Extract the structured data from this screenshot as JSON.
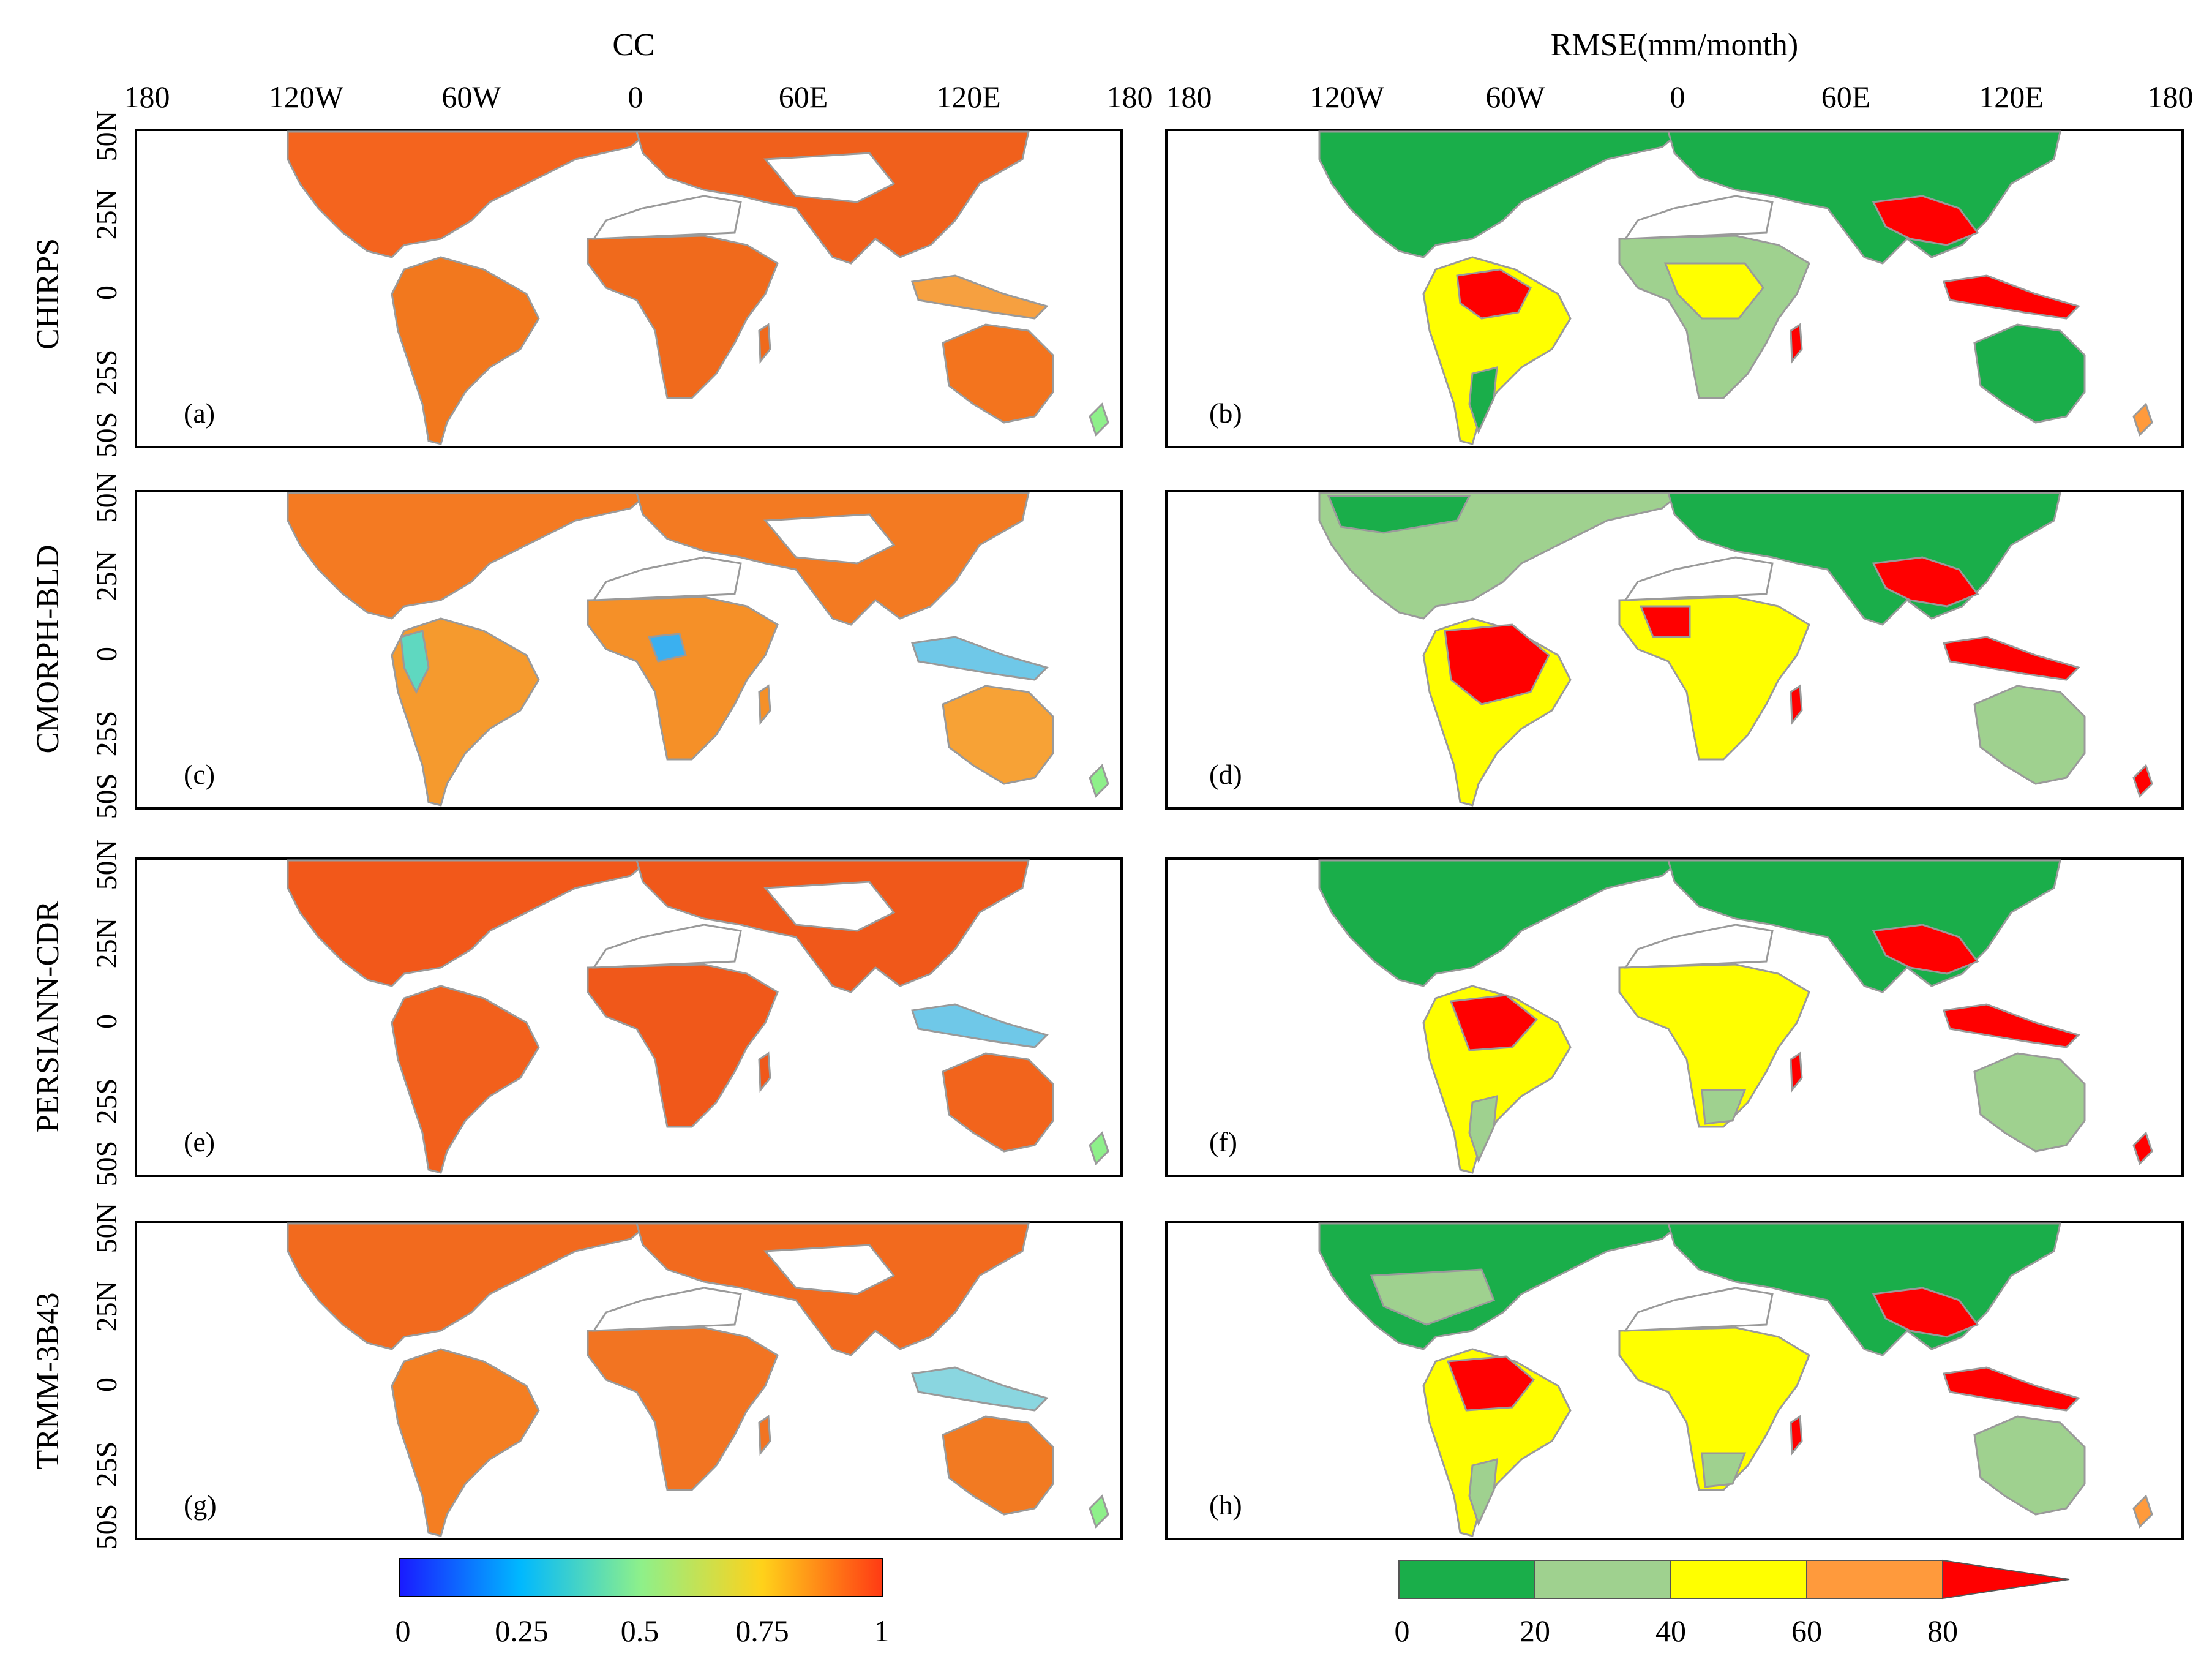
{
  "columns": [
    {
      "title": "CC",
      "lon_labels": [
        "180",
        "120W",
        "60W",
        "0",
        "60E",
        "120E",
        "180"
      ]
    },
    {
      "title": "RMSE(mm/month)",
      "lon_labels": [
        "180",
        "120W",
        "60W",
        "0",
        "60E",
        "120E",
        "180"
      ]
    }
  ],
  "lat_labels": [
    "50N",
    "25N",
    "0",
    "25S",
    "50S"
  ],
  "rows": [
    {
      "product": "CHIRPS",
      "panels": [
        "(a)",
        "(b)"
      ]
    },
    {
      "product": "CMORPH-BLD",
      "panels": [
        "(c)",
        "(d)"
      ]
    },
    {
      "product": "PERSIANN-CDR",
      "panels": [
        "(e)",
        "(f)"
      ]
    },
    {
      "product": "TRMM-3B43",
      "panels": [
        "(g)",
        "(h)"
      ]
    }
  ],
  "cc_colorbar": {
    "ticks": [
      "0",
      "0.25",
      "0.5",
      "0.75",
      "1"
    ],
    "stops": [
      "#1a1aff",
      "#00b8ff",
      "#8ef08a",
      "#ffd21a",
      "#ff3a14"
    ]
  },
  "rmse_colorbar": {
    "ticks": [
      "0",
      "20",
      "40",
      "60",
      "80"
    ],
    "classes": [
      {
        "range": "0-20",
        "color": "#1aae4a"
      },
      {
        "range": "20-40",
        "color": "#9fd18f"
      },
      {
        "range": "40-60",
        "color": "#ffff00"
      },
      {
        "range": "60-80",
        "color": "#ff9a3c"
      },
      {
        "range": ">80",
        "color": "#ff0000"
      }
    ]
  },
  "colors": {
    "cc_dominant": "#f4641e",
    "coastline": "#9a9a9a",
    "frame": "#000000"
  }
}
